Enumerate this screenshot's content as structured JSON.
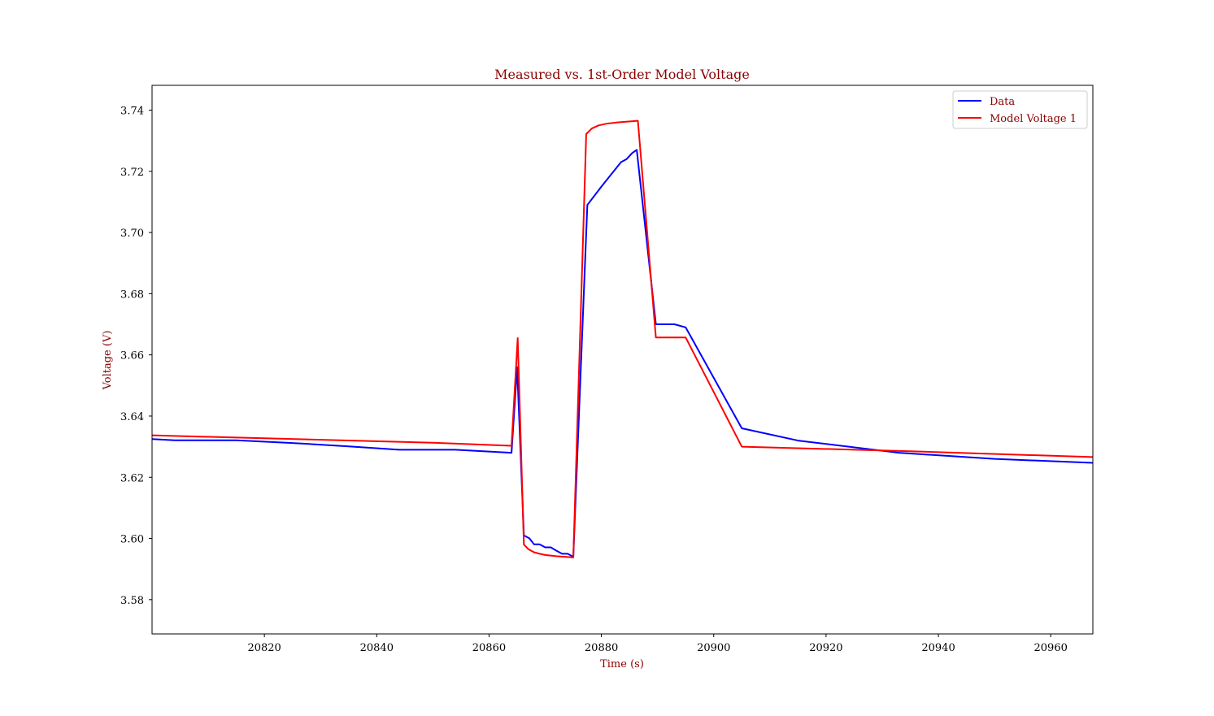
{
  "chart_data": {
    "type": "line",
    "title": "Measured vs. 1st-Order Model Voltage",
    "xlabel": "Time (s)",
    "ylabel": "Voltage (V)",
    "xlim": [
      20800,
      20967.5
    ],
    "ylim": [
      3.5688,
      3.7481
    ],
    "x_ticks": [
      20820,
      20840,
      20860,
      20880,
      20900,
      20920,
      20940,
      20960
    ],
    "x_tick_labels": [
      "20820",
      "20840",
      "20860",
      "20880",
      "20900",
      "20920",
      "20940",
      "20960"
    ],
    "y_ticks": [
      3.58,
      3.6,
      3.62,
      3.64,
      3.66,
      3.68,
      3.7,
      3.72,
      3.74
    ],
    "y_tick_labels": [
      "3.58",
      "3.60",
      "3.62",
      "3.64",
      "3.66",
      "3.68",
      "3.70",
      "3.72",
      "3.74"
    ],
    "grid": false,
    "legend_position": "top-right",
    "colors": {
      "text": "#8b0000",
      "axis": "#000000"
    },
    "series": [
      {
        "name": "Data",
        "color": "#0000ff",
        "points": [
          [
            20800,
            3.6325
          ],
          [
            20804,
            3.6321
          ],
          [
            20815,
            3.6321
          ],
          [
            20825,
            3.6312
          ],
          [
            20835,
            3.6301
          ],
          [
            20844,
            3.629
          ],
          [
            20854,
            3.629
          ],
          [
            20864,
            3.628
          ],
          [
            20865,
            3.656
          ],
          [
            20866.2,
            3.601
          ],
          [
            20867.2,
            3.6
          ],
          [
            20868,
            3.5981
          ],
          [
            20869,
            3.5981
          ],
          [
            20870,
            3.5971
          ],
          [
            20871,
            3.5971
          ],
          [
            20872,
            3.596
          ],
          [
            20873,
            3.595
          ],
          [
            20874,
            3.595
          ],
          [
            20875,
            3.594
          ],
          [
            20877.5,
            3.709
          ],
          [
            20880,
            3.715
          ],
          [
            20883.5,
            3.723
          ],
          [
            20884.5,
            3.724
          ],
          [
            20885.5,
            3.726
          ],
          [
            20886.3,
            3.727
          ],
          [
            20889.7,
            3.67
          ],
          [
            20893,
            3.67
          ],
          [
            20895,
            3.669
          ],
          [
            20905,
            3.636
          ],
          [
            20915,
            3.632
          ],
          [
            20933,
            3.628
          ],
          [
            20950,
            3.626
          ],
          [
            20967.5,
            3.6247
          ]
        ]
      },
      {
        "name": "Model Voltage 1",
        "color": "#ff0000",
        "points": [
          [
            20800,
            3.6337
          ],
          [
            20850,
            3.6313
          ],
          [
            20864,
            3.6303
          ],
          [
            20865.1,
            3.6655
          ],
          [
            20866.2,
            3.598
          ],
          [
            20867,
            3.5965
          ],
          [
            20868,
            3.5955
          ],
          [
            20869,
            3.595
          ],
          [
            20870,
            3.5946
          ],
          [
            20872,
            3.5942
          ],
          [
            20875,
            3.5938
          ],
          [
            20877.3,
            3.7322
          ],
          [
            20878.3,
            3.734
          ],
          [
            20879.5,
            3.735
          ],
          [
            20881,
            3.7356
          ],
          [
            20883,
            3.736
          ],
          [
            20886.5,
            3.7365
          ],
          [
            20889.7,
            3.6657
          ],
          [
            20895,
            3.6657
          ],
          [
            20905,
            3.63
          ],
          [
            20935,
            3.6285
          ],
          [
            20967.5,
            3.6266
          ]
        ]
      }
    ]
  }
}
